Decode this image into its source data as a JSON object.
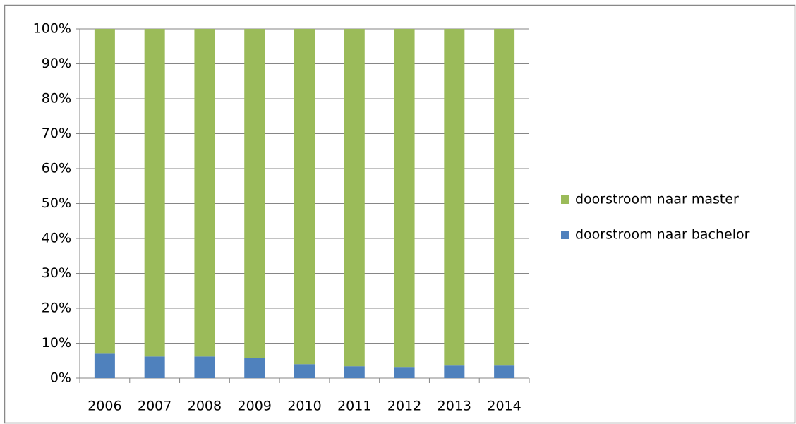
{
  "chart_data": {
    "type": "bar",
    "stacked": true,
    "categories": [
      "2006",
      "2007",
      "2008",
      "2009",
      "2010",
      "2011",
      "2012",
      "2013",
      "2014"
    ],
    "series": [
      {
        "name": "doorstroom naar bachelor",
        "color": "#4f81bd",
        "values": [
          7,
          6.2,
          6.2,
          5.8,
          4,
          3.4,
          3.2,
          3.6,
          3.6
        ]
      },
      {
        "name": "doorstroom naar master",
        "color": "#9bbb59",
        "values": [
          93,
          93.8,
          93.8,
          94.2,
          96,
          96.6,
          96.8,
          96.4,
          96.4
        ]
      }
    ],
    "ylim": [
      0,
      100
    ],
    "yticks": [
      {
        "value": 0,
        "label": "0%"
      },
      {
        "value": 10,
        "label": "10%"
      },
      {
        "value": 20,
        "label": "20%"
      },
      {
        "value": 30,
        "label": "30%"
      },
      {
        "value": 40,
        "label": "40%"
      },
      {
        "value": 50,
        "label": "50%"
      },
      {
        "value": 60,
        "label": "60%"
      },
      {
        "value": 70,
        "label": "70%"
      },
      {
        "value": 80,
        "label": "80%"
      },
      {
        "value": 90,
        "label": "90%"
      },
      {
        "value": 100,
        "label": "100%"
      }
    ],
    "grid": true,
    "legend": "right"
  }
}
